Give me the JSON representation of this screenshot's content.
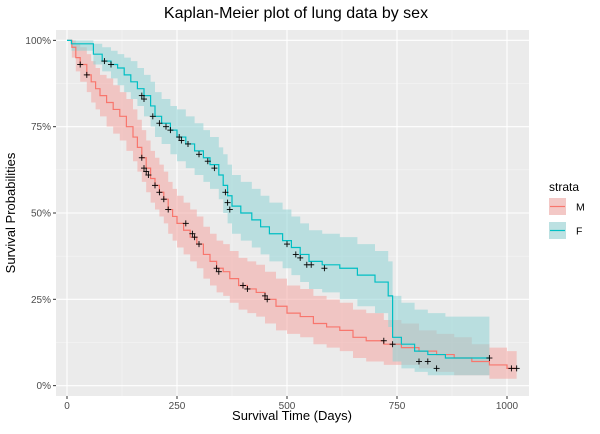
{
  "chart_data": {
    "type": "line",
    "title": "Kaplan-Meier plot of lung data by sex",
    "xlabel": "Survival Time (Days)",
    "ylabel": "Survival Probabilities",
    "xlim": [
      -25,
      1050
    ],
    "ylim": [
      -0.03,
      1.03
    ],
    "xticks": [
      0,
      250,
      500,
      750,
      1000
    ],
    "xtick_labels": [
      "0",
      "250",
      "500",
      "750",
      "1000"
    ],
    "yticks": [
      0,
      0.25,
      0.5,
      0.75,
      1.0
    ],
    "ytick_labels": [
      "0%",
      "25%",
      "50%",
      "75%",
      "100%"
    ],
    "grid": true,
    "legend": {
      "title": "strata",
      "position": "right",
      "entries": [
        {
          "label": "M",
          "color": "#F8766D",
          "band_color": "#F4A6A2"
        },
        {
          "label": "F",
          "color": "#00BFC4",
          "band_color": "#8FD3D6"
        }
      ]
    },
    "series": [
      {
        "name": "M",
        "color": "#F8766D",
        "band_color": "#F4A6A2",
        "times": [
          0,
          11,
          20,
          30,
          45,
          55,
          65,
          75,
          90,
          105,
          120,
          135,
          150,
          160,
          170,
          180,
          190,
          200,
          210,
          220,
          230,
          240,
          250,
          265,
          280,
          295,
          310,
          325,
          340,
          355,
          370,
          390,
          410,
          430,
          450,
          475,
          500,
          530,
          560,
          590,
          620,
          650,
          680,
          720,
          760,
          800,
          840,
          880,
          920,
          960,
          1000,
          1022
        ],
        "surv": [
          1.0,
          0.98,
          0.95,
          0.93,
          0.9,
          0.88,
          0.86,
          0.84,
          0.82,
          0.8,
          0.78,
          0.75,
          0.72,
          0.69,
          0.66,
          0.63,
          0.6,
          0.58,
          0.56,
          0.54,
          0.51,
          0.49,
          0.47,
          0.45,
          0.43,
          0.41,
          0.38,
          0.36,
          0.34,
          0.33,
          0.31,
          0.29,
          0.28,
          0.27,
          0.25,
          0.23,
          0.21,
          0.2,
          0.18,
          0.17,
          0.16,
          0.14,
          0.13,
          0.12,
          0.11,
          0.1,
          0.09,
          0.08,
          0.07,
          0.06,
          0.05,
          0.05
        ],
        "lower": [
          1.0,
          0.95,
          0.91,
          0.88,
          0.85,
          0.82,
          0.8,
          0.78,
          0.75,
          0.73,
          0.71,
          0.68,
          0.65,
          0.62,
          0.59,
          0.56,
          0.53,
          0.51,
          0.49,
          0.47,
          0.44,
          0.42,
          0.4,
          0.38,
          0.36,
          0.34,
          0.31,
          0.29,
          0.27,
          0.26,
          0.24,
          0.22,
          0.21,
          0.2,
          0.18,
          0.16,
          0.15,
          0.14,
          0.12,
          0.11,
          0.1,
          0.08,
          0.07,
          0.06,
          0.06,
          0.05,
          0.04,
          0.03,
          0.03,
          0.02,
          0.02,
          0.02
        ],
        "upper": [
          1.0,
          1.0,
          0.99,
          0.98,
          0.96,
          0.94,
          0.92,
          0.9,
          0.89,
          0.87,
          0.85,
          0.83,
          0.8,
          0.77,
          0.74,
          0.71,
          0.68,
          0.66,
          0.64,
          0.62,
          0.59,
          0.57,
          0.55,
          0.53,
          0.51,
          0.49,
          0.46,
          0.44,
          0.42,
          0.41,
          0.39,
          0.37,
          0.36,
          0.35,
          0.33,
          0.31,
          0.29,
          0.28,
          0.26,
          0.25,
          0.24,
          0.22,
          0.21,
          0.19,
          0.18,
          0.16,
          0.15,
          0.14,
          0.12,
          0.11,
          0.1,
          0.1
        ],
        "censored": [
          [
            30,
            0.93
          ],
          [
            45,
            0.9
          ],
          [
            170,
            0.66
          ],
          [
            175,
            0.63
          ],
          [
            180,
            0.62
          ],
          [
            185,
            0.61
          ],
          [
            200,
            0.58
          ],
          [
            210,
            0.56
          ],
          [
            220,
            0.54
          ],
          [
            230,
            0.51
          ],
          [
            270,
            0.47
          ],
          [
            285,
            0.44
          ],
          [
            290,
            0.43
          ],
          [
            300,
            0.41
          ],
          [
            340,
            0.34
          ],
          [
            345,
            0.33
          ],
          [
            400,
            0.29
          ],
          [
            410,
            0.28
          ],
          [
            450,
            0.26
          ],
          [
            455,
            0.25
          ],
          [
            800,
            0.07
          ],
          [
            820,
            0.07
          ],
          [
            840,
            0.05
          ],
          [
            1010,
            0.05
          ],
          [
            1022,
            0.05
          ]
        ]
      },
      {
        "name": "F",
        "color": "#00BFC4",
        "band_color": "#8FD3D6",
        "times": [
          0,
          10,
          60,
          80,
          100,
          115,
          130,
          145,
          160,
          175,
          190,
          200,
          215,
          235,
          250,
          270,
          290,
          310,
          325,
          345,
          355,
          365,
          375,
          395,
          420,
          440,
          460,
          490,
          510,
          530,
          550,
          580,
          620,
          660,
          700,
          730,
          740,
          760,
          790,
          820,
          860,
          900,
          960
        ],
        "surv": [
          1.0,
          0.99,
          0.96,
          0.94,
          0.93,
          0.92,
          0.9,
          0.88,
          0.86,
          0.84,
          0.81,
          0.78,
          0.76,
          0.74,
          0.72,
          0.7,
          0.68,
          0.66,
          0.64,
          0.61,
          0.58,
          0.55,
          0.52,
          0.5,
          0.48,
          0.46,
          0.44,
          0.42,
          0.4,
          0.38,
          0.36,
          0.35,
          0.34,
          0.32,
          0.3,
          0.26,
          0.14,
          0.12,
          0.1,
          0.09,
          0.08,
          0.08,
          0.08
        ],
        "lower": [
          1.0,
          0.97,
          0.93,
          0.91,
          0.89,
          0.87,
          0.85,
          0.83,
          0.81,
          0.78,
          0.75,
          0.72,
          0.7,
          0.67,
          0.65,
          0.63,
          0.61,
          0.59,
          0.57,
          0.54,
          0.5,
          0.47,
          0.44,
          0.42,
          0.4,
          0.38,
          0.36,
          0.34,
          0.32,
          0.3,
          0.28,
          0.27,
          0.25,
          0.23,
          0.21,
          0.17,
          0.07,
          0.05,
          0.04,
          0.03,
          0.03,
          0.03,
          0.03
        ],
        "upper": [
          1.0,
          1.0,
          0.99,
          0.98,
          0.97,
          0.96,
          0.95,
          0.94,
          0.92,
          0.9,
          0.88,
          0.85,
          0.83,
          0.81,
          0.8,
          0.78,
          0.76,
          0.74,
          0.72,
          0.69,
          0.67,
          0.64,
          0.61,
          0.59,
          0.57,
          0.55,
          0.53,
          0.51,
          0.49,
          0.47,
          0.45,
          0.44,
          0.43,
          0.41,
          0.39,
          0.36,
          0.26,
          0.24,
          0.22,
          0.21,
          0.2,
          0.2,
          0.2
        ],
        "censored": [
          [
            85,
            0.94
          ],
          [
            100,
            0.93
          ],
          [
            170,
            0.84
          ],
          [
            175,
            0.83
          ],
          [
            195,
            0.78
          ],
          [
            210,
            0.76
          ],
          [
            225,
            0.75
          ],
          [
            235,
            0.74
          ],
          [
            255,
            0.72
          ],
          [
            260,
            0.71
          ],
          [
            275,
            0.7
          ],
          [
            300,
            0.67
          ],
          [
            320,
            0.65
          ],
          [
            335,
            0.63
          ],
          [
            360,
            0.56
          ],
          [
            365,
            0.53
          ],
          [
            370,
            0.51
          ],
          [
            500,
            0.41
          ],
          [
            520,
            0.38
          ],
          [
            530,
            0.37
          ],
          [
            545,
            0.35
          ],
          [
            555,
            0.35
          ],
          [
            585,
            0.34
          ],
          [
            720,
            0.13
          ],
          [
            740,
            0.12
          ],
          [
            960,
            0.08
          ]
        ]
      }
    ]
  }
}
